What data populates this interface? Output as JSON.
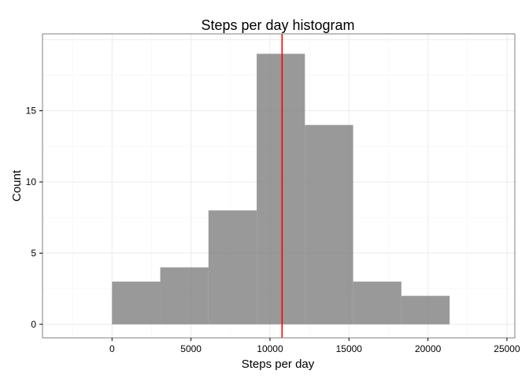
{
  "chart_data": {
    "type": "bar",
    "title": "Steps per day histogram",
    "xlabel": "Steps per day",
    "ylabel": "Count",
    "xlim": [
      -4400,
      25500
    ],
    "ylim": [
      -0.95,
      20.4
    ],
    "x_ticks": [
      0,
      5000,
      10000,
      15000,
      20000,
      25000
    ],
    "y_ticks": [
      0,
      5,
      10,
      15
    ],
    "bins": [
      {
        "x0": 0,
        "x1": 3053,
        "count": 3
      },
      {
        "x0": 3053,
        "x1": 6106,
        "count": 4
      },
      {
        "x0": 6106,
        "x1": 9159,
        "count": 8
      },
      {
        "x0": 9159,
        "x1": 12212,
        "count": 19
      },
      {
        "x0": 12212,
        "x1": 15265,
        "count": 14
      },
      {
        "x0": 15265,
        "x1": 18318,
        "count": 3
      },
      {
        "x0": 18318,
        "x1": 21371,
        "count": 2
      }
    ],
    "vline": {
      "x": 10766,
      "color": "#ff0000"
    },
    "bar_color": "#7f7f7f",
    "bar_opacity": 0.8,
    "grid": true,
    "legend": "none"
  }
}
